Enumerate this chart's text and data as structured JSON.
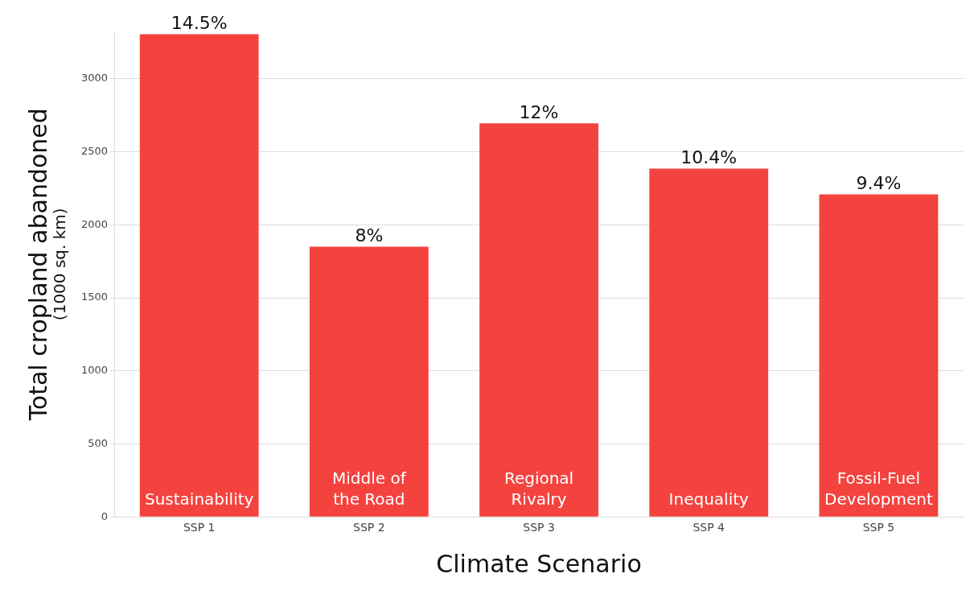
{
  "chart_data": {
    "type": "bar",
    "xlabel": "Climate Scenario",
    "ylabel": "Total cropland abandoned",
    "subtitle": "(1000 sq. km)",
    "categories": [
      "SSP 1",
      "SSP 2",
      "SSP 3",
      "SSP 4",
      "SSP 5"
    ],
    "values": [
      3305,
      1850,
      2695,
      2385,
      2208
    ],
    "color": "#f4433f",
    "ylim": [
      0,
      3330
    ],
    "yticks": [
      0,
      500,
      1000,
      1500,
      2000,
      2500,
      3000
    ],
    "grid": "y",
    "annotations": [
      {
        "text": "14.5%",
        "x": "SSP 1",
        "y": 3305
      },
      {
        "text": "8%",
        "x": "SSP 2",
        "y": 1850
      },
      {
        "text": "12%",
        "x": "SSP 3",
        "y": 2695
      },
      {
        "text": "10.4%",
        "x": "SSP 4",
        "y": 2385
      },
      {
        "text": "9.4%",
        "x": "SSP 5",
        "y": 2208
      },
      "Sustainability",
      "Middle of the Road",
      "Regional Rivalry",
      "Inequality",
      "Fossil-Fuel Development"
    ]
  }
}
